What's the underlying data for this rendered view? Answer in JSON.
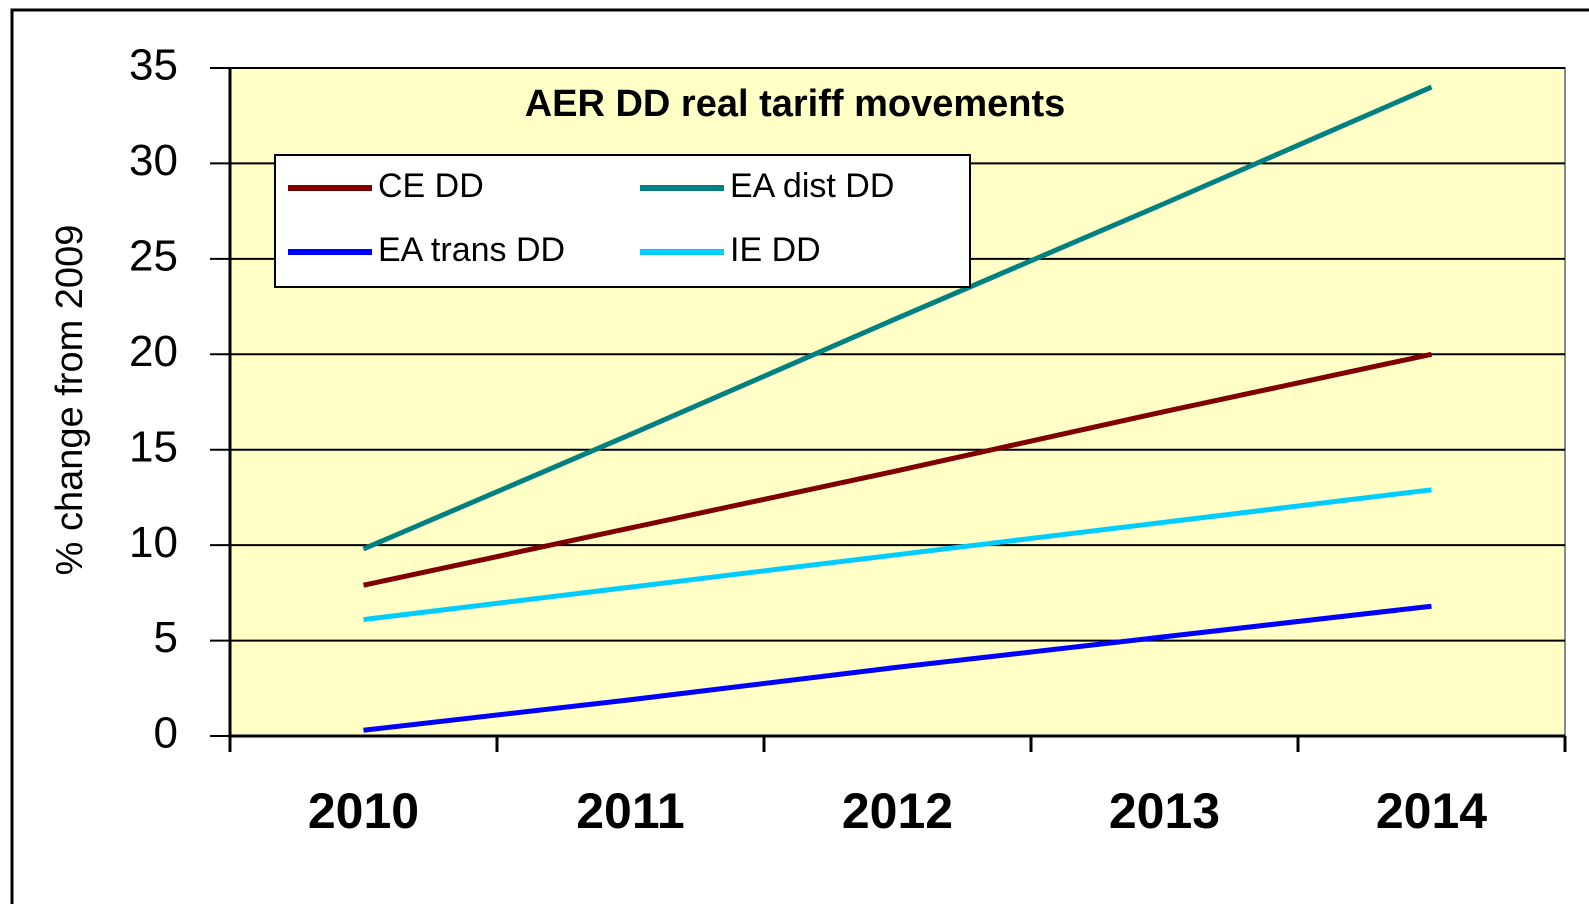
{
  "chart_data": {
    "type": "line",
    "title": "AER DD real tariff movements",
    "y_label": "% change from 2009",
    "categories": [
      "2010",
      "2011",
      "2012",
      "2013",
      "2014"
    ],
    "series": [
      {
        "name": "CE DD",
        "color": "#800000",
        "values": [
          7.9,
          10.9,
          13.9,
          17.0,
          20.0
        ]
      },
      {
        "name": "EA dist DD",
        "color": "#008080",
        "values": [
          9.8,
          15.8,
          21.9,
          27.9,
          34.0
        ]
      },
      {
        "name": "EA trans DD",
        "color": "#0000ff",
        "values": [
          0.3,
          1.9,
          3.6,
          5.2,
          6.8
        ]
      },
      {
        "name": "IE  DD",
        "color": "#00ccff",
        "values": [
          6.1,
          7.8,
          9.5,
          11.2,
          12.9
        ]
      }
    ],
    "ylim": [
      0,
      35
    ],
    "yticks": [
      0,
      5,
      10,
      15,
      20,
      25,
      30,
      35
    ],
    "grid": true,
    "legend": "top-left"
  }
}
